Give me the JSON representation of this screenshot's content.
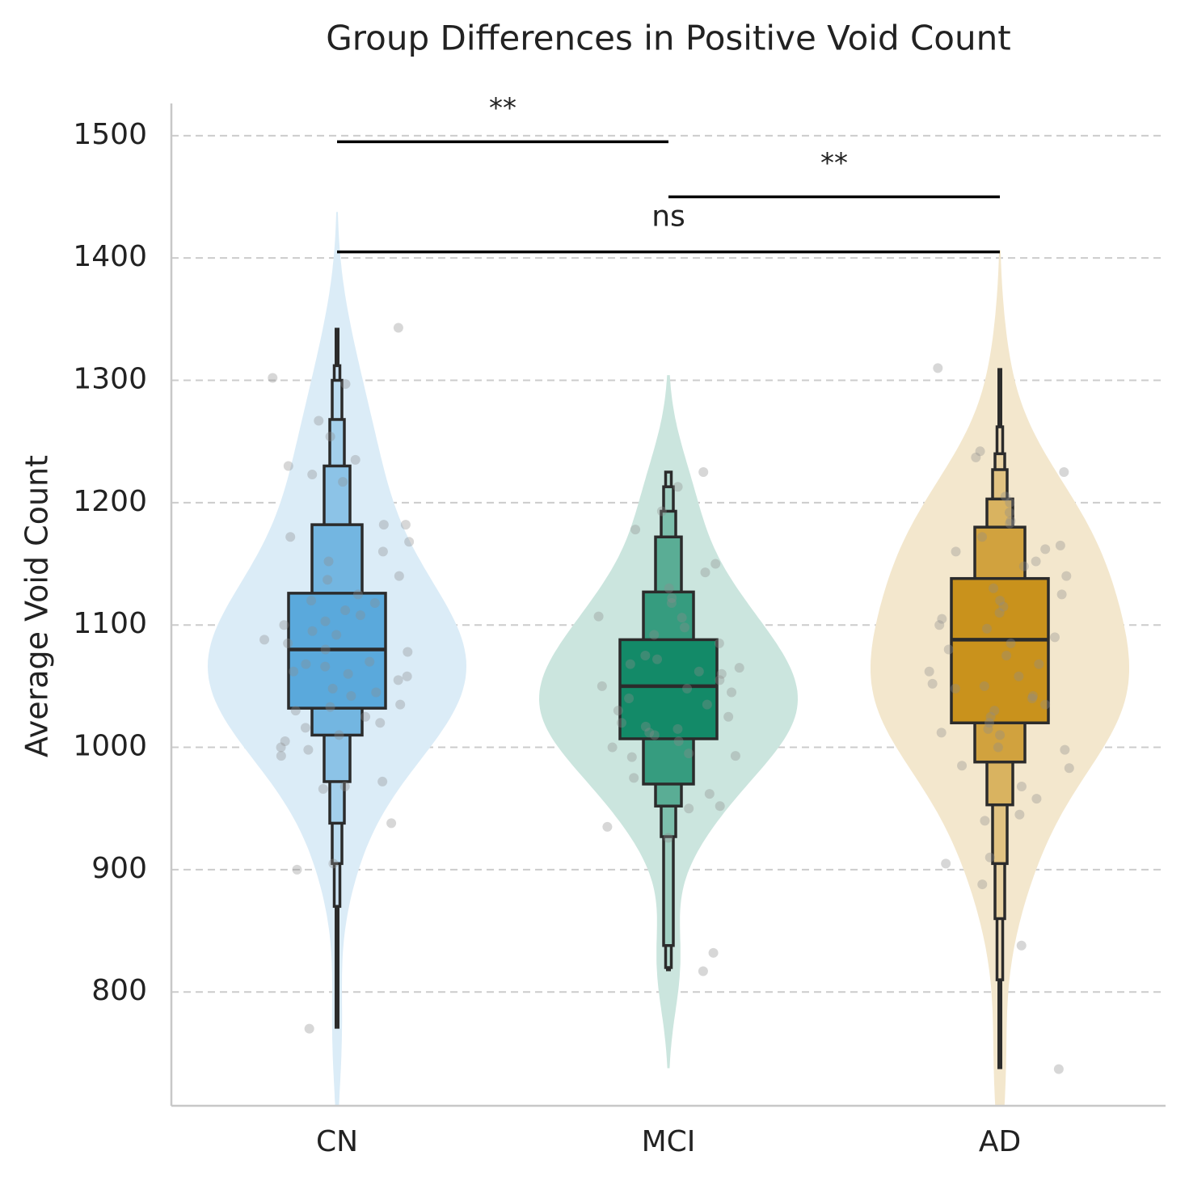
{
  "chart_data": {
    "type": "boxen",
    "title": "Group Differences in Positive Void Count",
    "y_label": "Average Void Count",
    "categories": [
      "CN",
      "MCI",
      "AD"
    ],
    "ylim": [
      707,
      1525
    ],
    "yticks": [
      800,
      900,
      1000,
      1100,
      1200,
      1300,
      1400,
      1500
    ],
    "grid": true,
    "point_color": "#8c8c8c",
    "groups": [
      {
        "color": "#5aa9dc",
        "median": 1080,
        "boxes": [
          [
            1032,
            1126
          ],
          [
            1010,
            1182
          ],
          [
            972,
            1230
          ],
          [
            938,
            1268
          ],
          [
            905,
            1300
          ],
          [
            870,
            1312
          ]
        ],
        "range": [
          770,
          1343
        ],
        "points": [
          1343,
          1302,
          1297,
          1267,
          1254,
          1235,
          1230,
          1223,
          1217,
          1182,
          1182,
          1172,
          1168,
          1160,
          1152,
          1140,
          1137,
          1125,
          1120,
          1118,
          1112,
          1108,
          1103,
          1100,
          1095,
          1092,
          1088,
          1085,
          1080,
          1078,
          1070,
          1068,
          1066,
          1062,
          1060,
          1058,
          1055,
          1048,
          1045,
          1042,
          1035,
          1033,
          1030,
          1025,
          1020,
          1016,
          1010,
          1005,
          1000,
          998,
          993,
          972,
          968,
          966,
          938,
          905,
          900,
          770
        ]
      },
      {
        "color": "#138a68",
        "median": 1050,
        "boxes": [
          [
            1007,
            1088
          ],
          [
            970,
            1127
          ],
          [
            952,
            1172
          ],
          [
            927,
            1193
          ],
          [
            838,
            1213
          ],
          [
            820,
            1225
          ]
        ],
        "range": [
          817,
          1225
        ],
        "points": [
          1225,
          1213,
          1193,
          1178,
          1150,
          1143,
          1130,
          1122,
          1118,
          1107,
          1106,
          1098,
          1092,
          1085,
          1075,
          1072,
          1068,
          1065,
          1062,
          1060,
          1055,
          1050,
          1048,
          1045,
          1040,
          1035,
          1030,
          1025,
          1020,
          1017,
          1015,
          1012,
          1010,
          1005,
          1000,
          995,
          993,
          992,
          975,
          962,
          952,
          950,
          935,
          926,
          832,
          817
        ]
      },
      {
        "color": "#c9921c",
        "median": 1088,
        "boxes": [
          [
            1020,
            1138
          ],
          [
            988,
            1180
          ],
          [
            953,
            1203
          ],
          [
            905,
            1227
          ],
          [
            860,
            1240
          ],
          [
            810,
            1262
          ]
        ],
        "range": [
          737,
          1310
        ],
        "points": [
          1310,
          1242,
          1237,
          1225,
          1205,
          1200,
          1192,
          1185,
          1183,
          1172,
          1165,
          1162,
          1160,
          1152,
          1148,
          1140,
          1130,
          1125,
          1120,
          1115,
          1110,
          1105,
          1100,
          1097,
          1090,
          1085,
          1080,
          1075,
          1068,
          1062,
          1058,
          1052,
          1050,
          1048,
          1042,
          1040,
          1035,
          1030,
          1025,
          1020,
          1015,
          1012,
          1010,
          1000,
          998,
          985,
          983,
          968,
          958,
          945,
          940,
          910,
          905,
          888,
          838,
          737
        ]
      }
    ],
    "comparisons": [
      {
        "from": 0,
        "to": 1,
        "y": 1495,
        "label": "**"
      },
      {
        "from": 1,
        "to": 2,
        "y": 1450,
        "label": "**"
      },
      {
        "from": 0,
        "to": 2,
        "y": 1405,
        "label": "ns"
      }
    ]
  }
}
